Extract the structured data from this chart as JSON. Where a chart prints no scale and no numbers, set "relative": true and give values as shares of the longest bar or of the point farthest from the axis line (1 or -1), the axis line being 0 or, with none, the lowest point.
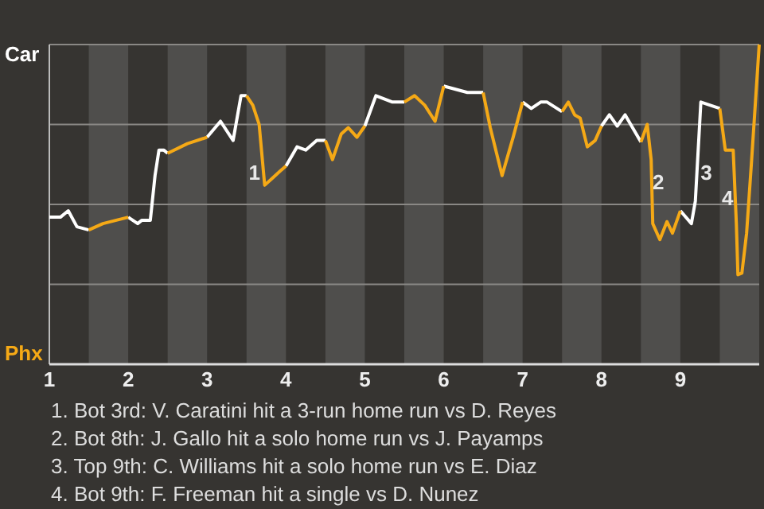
{
  "chart_data": {
    "type": "line",
    "x": [
      1,
      1.14,
      1.24,
      1.35,
      1.5,
      1.68,
      2,
      2.12,
      2.17,
      2.28,
      2.34,
      2.39,
      2.45,
      2.5,
      2.75,
      3,
      3.17,
      3.33,
      3.43,
      3.5,
      3.58,
      3.66,
      3.73,
      3.82,
      3.93,
      4,
      4.14,
      4.25,
      4.39,
      4.5,
      4.59,
      4.7,
      4.79,
      4.9,
      5,
      5.14,
      5.35,
      5.46,
      5.5,
      5.63,
      5.76,
      5.89,
      6,
      6.3,
      6.5,
      6.59,
      6.74,
      6.88,
      7,
      7.11,
      7.23,
      7.31,
      7.5,
      7.58,
      7.66,
      7.73,
      7.82,
      7.92,
      8,
      8.1,
      8.2,
      8.3,
      8.5,
      8.58,
      8.63,
      8.65,
      8.74,
      8.83,
      8.9,
      9,
      9.14,
      9.19,
      9.26,
      9.5,
      9.57,
      9.67,
      9.71,
      9.73,
      9.78,
      9.84,
      9.9,
      10
    ],
    "series": [
      {
        "color": "#ffffff",
        "values": [
          0.46,
          0.46,
          0.48,
          0.43,
          0.42,
          null,
          0.46,
          0.44,
          0.45,
          0.45,
          0.59,
          0.67,
          0.67,
          0.66,
          null,
          0.71,
          0.76,
          0.7,
          0.84,
          0.84,
          null,
          null,
          null,
          null,
          null,
          0.62,
          0.68,
          0.67,
          0.7,
          0.7,
          null,
          null,
          null,
          null,
          0.745,
          0.84,
          0.82,
          0.82,
          0.82,
          null,
          null,
          null,
          0.87,
          0.85,
          0.85,
          null,
          null,
          null,
          0.82,
          0.8,
          0.82,
          0.82,
          0.79,
          null,
          null,
          null,
          null,
          null,
          0.745,
          0.78,
          0.745,
          0.78,
          0.695,
          null,
          null,
          null,
          null,
          null,
          null,
          0.48,
          0.44,
          0.51,
          0.82,
          0.8,
          null,
          null,
          null,
          null,
          null,
          null,
          null,
          null
        ]
      },
      {
        "color": "#f5a916",
        "values": [
          null,
          null,
          null,
          null,
          0.42,
          0.44,
          0.46,
          null,
          null,
          null,
          null,
          null,
          null,
          0.66,
          0.69,
          0.71,
          null,
          null,
          null,
          0.84,
          0.81,
          0.75,
          0.56,
          0.58,
          0.605,
          0.62,
          null,
          null,
          null,
          0.7,
          0.64,
          0.72,
          0.74,
          0.71,
          0.745,
          null,
          null,
          null,
          0.82,
          0.84,
          0.81,
          0.76,
          0.87,
          null,
          0.85,
          0.74,
          0.59,
          0.71,
          0.82,
          null,
          null,
          null,
          0.79,
          0.82,
          0.78,
          0.77,
          0.68,
          0.7,
          0.745,
          null,
          null,
          null,
          0.695,
          0.75,
          0.64,
          0.44,
          0.39,
          0.446,
          0.41,
          0.48,
          null,
          null,
          null,
          0.8,
          0.67,
          0.67,
          0.44,
          0.28,
          0.285,
          0.41,
          0.625,
          1
        ]
      }
    ],
    "relative": true,
    "xlim": [
      1,
      10
    ],
    "xticks": [
      1,
      2,
      3,
      4,
      5,
      6,
      7,
      8,
      9
    ],
    "grid": "y",
    "marker": "none",
    "line_style": "solid",
    "bands": [
      {
        "axis": "x",
        "from": 1.5,
        "to": 2,
        "color": "#4f4e4c"
      },
      {
        "axis": "x",
        "from": 2.5,
        "to": 3,
        "color": "#4f4e4c"
      },
      {
        "axis": "x",
        "from": 3.5,
        "to": 4,
        "color": "#4f4e4c"
      },
      {
        "axis": "x",
        "from": 4.5,
        "to": 5,
        "color": "#4f4e4c"
      },
      {
        "axis": "x",
        "from": 5.5,
        "to": 6,
        "color": "#4f4e4c"
      },
      {
        "axis": "x",
        "from": 6.5,
        "to": 7,
        "color": "#4f4e4c"
      },
      {
        "axis": "x",
        "from": 7.5,
        "to": 8,
        "color": "#4f4e4c"
      },
      {
        "axis": "x",
        "from": 8.5,
        "to": 9,
        "color": "#4f4e4c"
      },
      {
        "axis": "x",
        "from": 9.5,
        "to": 10,
        "color": "#4f4e4c"
      }
    ],
    "annotations": [
      "Car",
      "Phx",
      {
        "text": "1",
        "x": 3.6,
        "y": 0.6
      },
      {
        "text": "2",
        "x": 8.72,
        "y": 0.57
      },
      {
        "text": "3",
        "x": 9.33,
        "y": 0.6
      },
      {
        "text": "4",
        "x": 9.6,
        "y": 0.52
      },
      "1. Bot 3rd: V. Caratini hit a 3-run home run vs D. Reyes",
      "2. Bot 8th: J. Gallo hit a solo home run vs J. Payamps",
      "3. Top 9th: C. Williams hit a solo home run vs E. Diaz",
      "4. Bot 9th: F. Freeman hit a single vs D. Nunez"
    ]
  }
}
